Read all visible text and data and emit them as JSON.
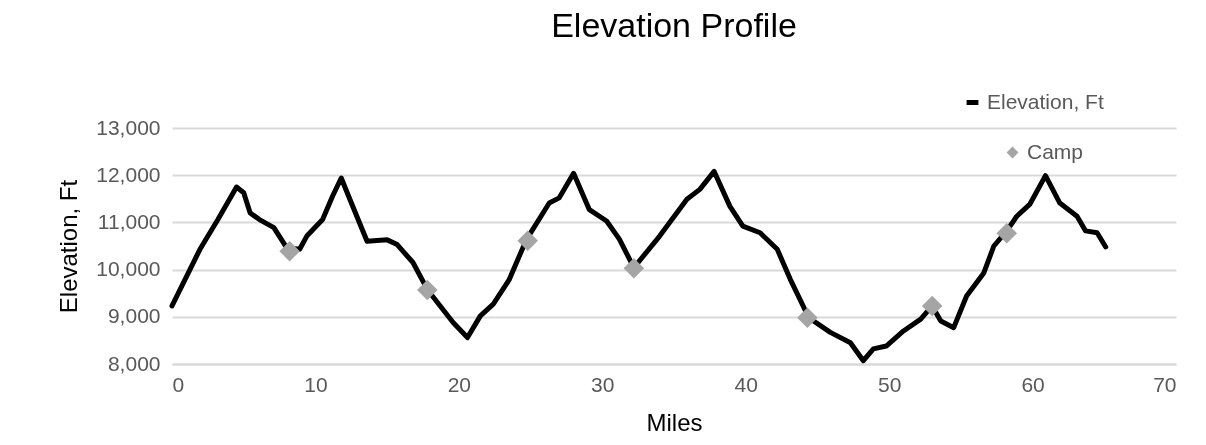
{
  "chart_data": {
    "type": "line",
    "title": "Elevation Profile",
    "xlabel": "Miles",
    "ylabel": "Elevation, Ft",
    "xlim": [
      0,
      70
    ],
    "xticks": [
      0,
      10,
      20,
      30,
      40,
      50,
      60,
      70
    ],
    "ylim": [
      8000,
      13000
    ],
    "yticks": [
      {
        "value": 8000,
        "label": "8,000"
      },
      {
        "value": 9000,
        "label": "9,000"
      },
      {
        "value": 10000,
        "label": "10,000"
      },
      {
        "value": 11000,
        "label": "11,000"
      },
      {
        "value": 12000,
        "label": "12,000"
      },
      {
        "value": 13000,
        "label": "13,000"
      }
    ],
    "grid": "y",
    "legend": "top right",
    "line_style": "solid",
    "series": [
      {
        "name": "Elevation, Ft",
        "color": "#000000",
        "marker": "none",
        "x": [
          0,
          1.95,
          3.2,
          4.5,
          5.0,
          5.45,
          6.1,
          7.1,
          8.0,
          8.9,
          9.4,
          10.5,
          11.2,
          11.8,
          12.4,
          13.6,
          15.0,
          15.7,
          16.8,
          17.8,
          19.6,
          20.6,
          21.5,
          22.4,
          23.5,
          24.7,
          26.3,
          27.0,
          28.0,
          29.1,
          30.3,
          31.2,
          32.2,
          34.0,
          35.9,
          36.8,
          37.8,
          38.9,
          39.8,
          41.0,
          42.2,
          43.1,
          44.4,
          45.9,
          47.3,
          48.2,
          48.9,
          49.8,
          51.0,
          52.2,
          53.0,
          53.6,
          54.5,
          55.4,
          56.6,
          57.3,
          58.2,
          58.9,
          59.8,
          60.9,
          61.9,
          63.1,
          63.7,
          64.5,
          65.1
        ],
        "values": [
          9230,
          10430,
          11060,
          11750,
          11630,
          11200,
          11060,
          10890,
          10460,
          10430,
          10710,
          11060,
          11560,
          11940,
          11490,
          10600,
          10630,
          10530,
          10150,
          9580,
          8880,
          8560,
          9020,
          9270,
          9780,
          10630,
          11410,
          11520,
          12040,
          11270,
          11030,
          10640,
          10040,
          10710,
          11490,
          11700,
          12080,
          11340,
          10920,
          10780,
          10430,
          9800,
          8980,
          8670,
          8450,
          8070,
          8320,
          8380,
          8700,
          8950,
          9230,
          8910,
          8770,
          9440,
          9930,
          10500,
          10820,
          11130,
          11380,
          11990,
          11410,
          11130,
          10820,
          10780,
          10480
        ]
      },
      {
        "name": "Camp",
        "type": "scatter",
        "color": "#a5a5a5",
        "marker": "diamond",
        "x": [
          8.2,
          17.8,
          24.8,
          32.2,
          44.3,
          53.0,
          58.2
        ],
        "values": [
          10390,
          9570,
          10610,
          10030,
          8980,
          9230,
          10770
        ]
      }
    ]
  }
}
